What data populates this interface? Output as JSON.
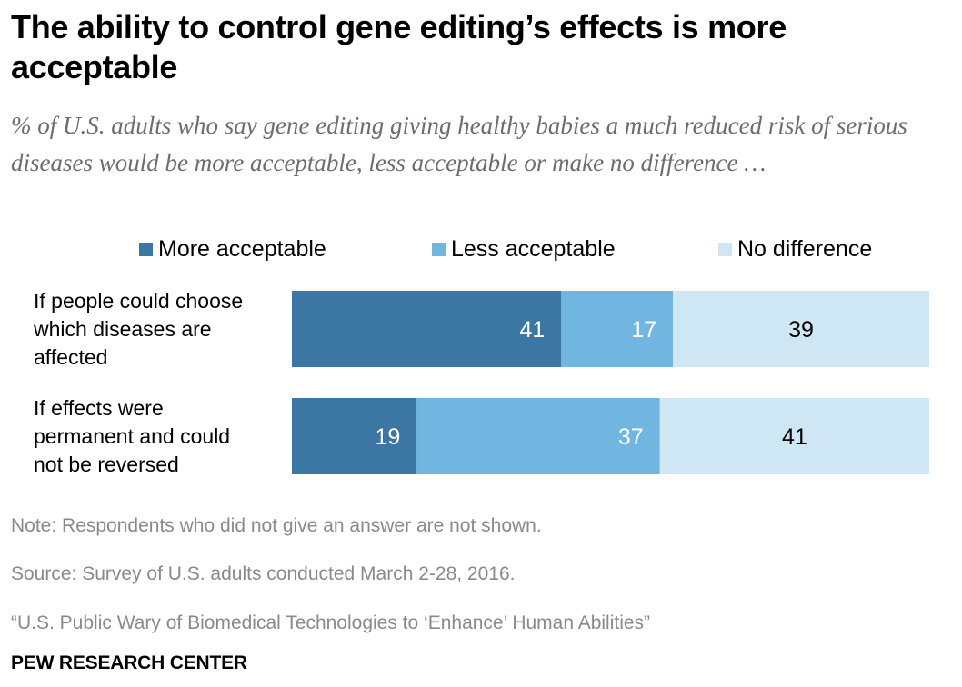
{
  "chart_data": {
    "type": "bar",
    "orientation": "horizontal",
    "stacked": true,
    "title": "The ability to control gene editing’s effects is more acceptable",
    "subtitle": "% of U.S. adults who say gene editing giving healthy babies a much reduced risk of serious diseases would be more acceptable, less acceptable or make no difference …",
    "categories": [
      {
        "lines": [
          "If people could choose",
          "which diseases are",
          "affected"
        ]
      },
      {
        "lines": [
          "If effects were",
          "permanent and could",
          "not be reversed"
        ]
      }
    ],
    "series": [
      {
        "name": "More acceptable",
        "color": "#3b77a2",
        "label_color": "#ffffff",
        "values": [
          41,
          19
        ]
      },
      {
        "name": "Less acceptable",
        "color": "#70b6e0",
        "label_color": "#ffffff",
        "values": [
          17,
          37
        ]
      },
      {
        "name": "No difference",
        "color": "#cfe6f4",
        "label_color": "#000000",
        "values": [
          39,
          41
        ]
      }
    ],
    "xlim": [
      0,
      97
    ],
    "legend_position": "top",
    "grid": false
  },
  "notes": {
    "note": "Note: Respondents who did not give an answer are not shown.",
    "source": "Source: Survey of U.S. adults conducted March 2-28, 2016.",
    "report": "“U.S. Public Wary of Biomedical Technologies to ‘Enhance’ Human Abilities”"
  },
  "footer": {
    "brand": "PEW RESEARCH CENTER"
  }
}
